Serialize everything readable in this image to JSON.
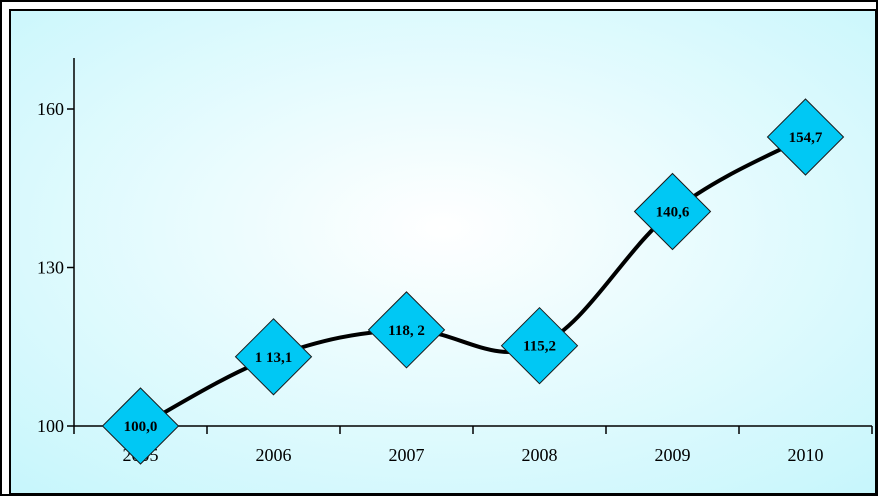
{
  "chart_data": {
    "type": "line",
    "categories": [
      "2005",
      "2006",
      "2007",
      "2008",
      "2009",
      "2010"
    ],
    "series": [
      {
        "values": [
          100.0,
          113.1,
          118.2,
          115.2,
          140.6,
          154.7
        ],
        "labels": [
          "100,0",
          "1 13,1",
          "118, 2",
          "115,2",
          "140,6",
          "154,7"
        ]
      }
    ],
    "yticks": [
      "100",
      "130",
      "160"
    ],
    "ytick_values": [
      100,
      130,
      160
    ],
    "ylim": [
      100,
      170
    ],
    "grid": false,
    "legend": "none",
    "colors": {
      "plot_bg_center": "#ffffff",
      "plot_bg_edge": "#c6f6fc",
      "line": "#000000",
      "marker_fill": "#00c8f4",
      "marker_stroke": "#1a1a1a"
    },
    "marker": "diamond"
  }
}
